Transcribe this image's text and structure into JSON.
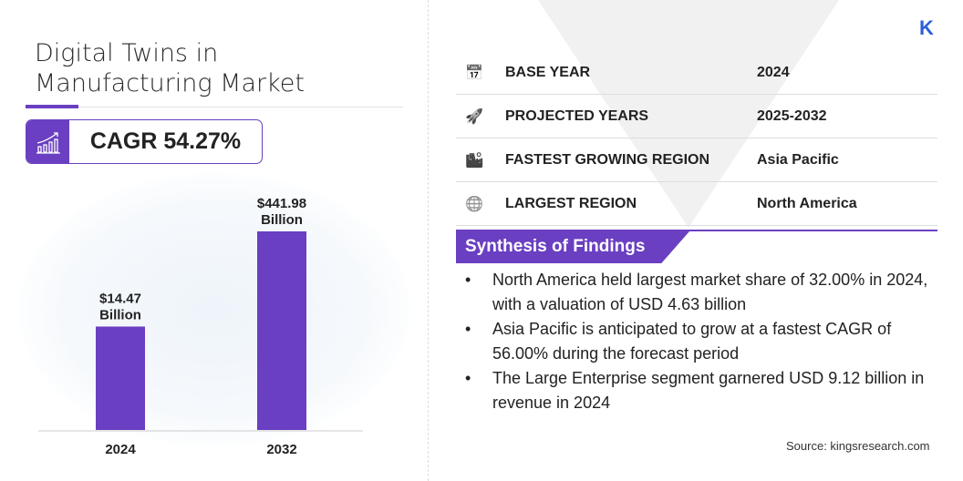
{
  "title": "Digital Twins in Manufacturing Market",
  "cagr": "CAGR 54.27%",
  "logo": "K",
  "accent": "#6a3fc1",
  "info_rows": [
    {
      "icon": "calendar-icon",
      "label": "BASE YEAR",
      "value": "2024"
    },
    {
      "icon": "rocket-icon",
      "label": "PROJECTED YEARS",
      "value": "2025-2032"
    },
    {
      "icon": "growth-region-icon",
      "label": "FASTEST GROWING REGION",
      "value": "Asia Pacific"
    },
    {
      "icon": "globe-icon",
      "label": "LARGEST REGION",
      "value": "North America"
    }
  ],
  "synthesis": {
    "heading": "Synthesis of Findings",
    "items": [
      "North America held largest market share of 32.00% in 2024, with a valuation of USD 4.63 billion",
      "Asia Pacific is anticipated to grow at a fastest CAGR of 56.00% during the forecast period",
      "The Large Enterprise segment garnered USD 9.12 billion in revenue in 2024"
    ]
  },
  "source": "Source: kingsresearch.com",
  "chart_data": {
    "type": "bar",
    "categories": [
      "2024",
      "2032"
    ],
    "values": [
      14.47,
      441.98
    ],
    "data_labels": [
      [
        "$14.47",
        "Billion"
      ],
      [
        "$441.98",
        "Billion"
      ]
    ],
    "color": "#6a3fc1"
  }
}
